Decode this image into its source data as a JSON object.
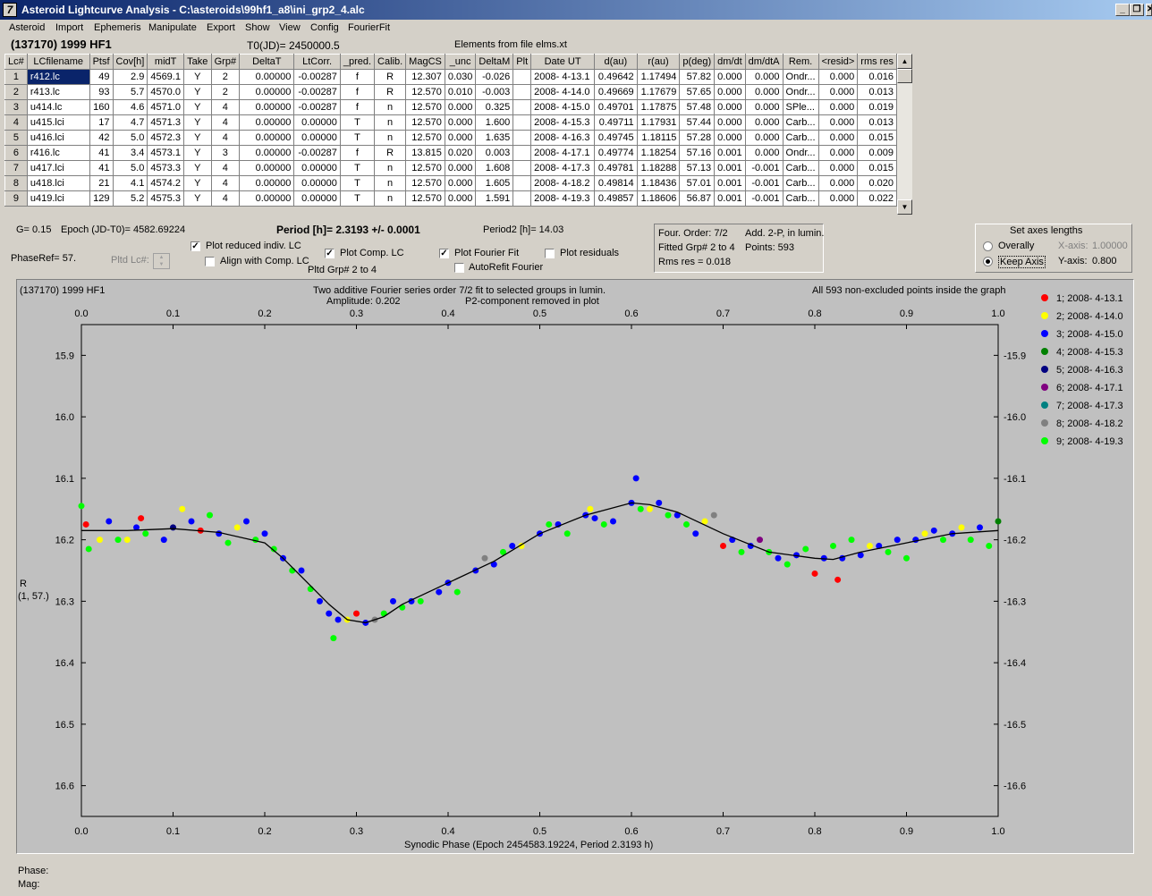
{
  "window": {
    "title": "Asteroid Lightcurve Analysis - C:\\asteroids\\99hf1_a8\\ini_grp2_4.alc",
    "app_icon": "7",
    "buttons": {
      "minimize": "_",
      "restore": "❐",
      "close": "✕"
    }
  },
  "menu": [
    "Asteroid",
    "Import",
    "Ephemeris",
    "Manipulate",
    "Export",
    "Show",
    "View",
    "Config",
    "FourierFit"
  ],
  "header": {
    "asteroid": "(137170) 1999 HF1",
    "t0": "T0(JD)= 2450000.5",
    "elements": "Elements from file elms.xt"
  },
  "table": {
    "columns": [
      "Lc#",
      "LCfilename",
      "Ptsf",
      "Cov[h]",
      "midT",
      "Take",
      "Grp#",
      "DeltaT",
      "LtCorr.",
      "_pred.",
      "Calib.",
      "MagCS",
      "_unc",
      "DeltaM",
      "Plt",
      "Date UT",
      "d(au)",
      "r(au)",
      "p(deg)",
      "dm/dt",
      "dm/dtA",
      "Rem.",
      "<resid>",
      "rms res"
    ],
    "rows": [
      [
        "1",
        "r412.lc",
        "49",
        "2.9",
        "4569.1",
        "Y",
        "2",
        "0.00000",
        "-0.00287",
        "f",
        "R",
        "12.307",
        "0.030",
        "-0.026",
        "",
        "2008- 4-13.1",
        "0.49642",
        "1.17494",
        "57.82",
        "0.000",
        "0.000",
        "Ondr...",
        "0.000",
        "0.016"
      ],
      [
        "2",
        "r413.lc",
        "93",
        "5.7",
        "4570.0",
        "Y",
        "2",
        "0.00000",
        "-0.00287",
        "f",
        "R",
        "12.570",
        "0.010",
        "-0.003",
        "",
        "2008- 4-14.0",
        "0.49669",
        "1.17679",
        "57.65",
        "0.000",
        "0.000",
        "Ondr...",
        "0.000",
        "0.013"
      ],
      [
        "3",
        "u414.lc",
        "160",
        "4.6",
        "4571.0",
        "Y",
        "4",
        "0.00000",
        "-0.00287",
        "f",
        "n",
        "12.570",
        "0.000",
        "0.325",
        "",
        "2008- 4-15.0",
        "0.49701",
        "1.17875",
        "57.48",
        "0.000",
        "0.000",
        "SPle...",
        "0.000",
        "0.019"
      ],
      [
        "4",
        "u415.lci",
        "17",
        "4.7",
        "4571.3",
        "Y",
        "4",
        "0.00000",
        "0.00000",
        "T",
        "n",
        "12.570",
        "0.000",
        "1.600",
        "",
        "2008- 4-15.3",
        "0.49711",
        "1.17931",
        "57.44",
        "0.000",
        "0.000",
        "Carb...",
        "0.000",
        "0.013"
      ],
      [
        "5",
        "u416.lci",
        "42",
        "5.0",
        "4572.3",
        "Y",
        "4",
        "0.00000",
        "0.00000",
        "T",
        "n",
        "12.570",
        "0.000",
        "1.635",
        "",
        "2008- 4-16.3",
        "0.49745",
        "1.18115",
        "57.28",
        "0.000",
        "0.000",
        "Carb...",
        "0.000",
        "0.015"
      ],
      [
        "6",
        "r416.lc",
        "41",
        "3.4",
        "4573.1",
        "Y",
        "3",
        "0.00000",
        "-0.00287",
        "f",
        "R",
        "13.815",
        "0.020",
        "0.003",
        "",
        "2008- 4-17.1",
        "0.49774",
        "1.18254",
        "57.16",
        "0.001",
        "0.000",
        "Ondr...",
        "0.000",
        "0.009"
      ],
      [
        "7",
        "u417.lci",
        "41",
        "5.0",
        "4573.3",
        "Y",
        "4",
        "0.00000",
        "0.00000",
        "T",
        "n",
        "12.570",
        "0.000",
        "1.608",
        "",
        "2008- 4-17.3",
        "0.49781",
        "1.18288",
        "57.13",
        "0.001",
        "-0.001",
        "Carb...",
        "0.000",
        "0.015"
      ],
      [
        "8",
        "u418.lci",
        "21",
        "4.1",
        "4574.2",
        "Y",
        "4",
        "0.00000",
        "0.00000",
        "T",
        "n",
        "12.570",
        "0.000",
        "1.605",
        "",
        "2008- 4-18.2",
        "0.49814",
        "1.18436",
        "57.01",
        "0.001",
        "-0.001",
        "Carb...",
        "0.000",
        "0.020"
      ],
      [
        "9",
        "u419.lci",
        "129",
        "5.2",
        "4575.3",
        "Y",
        "4",
        "0.00000",
        "0.00000",
        "T",
        "n",
        "12.570",
        "0.000",
        "1.591",
        "",
        "2008- 4-19.3",
        "0.49857",
        "1.18606",
        "56.87",
        "0.001",
        "-0.001",
        "Carb...",
        "0.000",
        "0.022"
      ]
    ]
  },
  "params": {
    "g": "G= 0.15",
    "epoch": "Epoch (JD-T0)= 4582.69224",
    "period": "Period [h]= 2.3193 +/- 0.0001",
    "period2": "Period2 [h]= 14.03",
    "phaseref": "PhaseRef= 57.",
    "pltd_lc": "Pltd Lc#:",
    "plot_reduced": "Plot reduced indiv. LC",
    "align_comp": "Align with Comp. LC",
    "plot_comp": "Plot Comp. LC",
    "pltd_grp": "Pltd Grp#  2   to   4",
    "plot_fourier": "Plot Fourier Fit",
    "autorefit": "AutoRefit Fourier",
    "plot_residuals": "Plot residuals"
  },
  "fourier_box": {
    "order": "Four. Order:  7/2",
    "add": "Add. 2-P, in lumin.",
    "fitted": "Fitted Grp# 2 to 4",
    "points": "Points: 593",
    "rms": "Rms res      = 0.018"
  },
  "axes_box": {
    "title": "Set axes lengths",
    "overally": "Overally",
    "keep_axis": "Keep Axis",
    "x_axis_label": "X-axis:",
    "x_axis_value": "1.00000",
    "y_axis_label": "Y-axis:",
    "y_axis_value": "0.800"
  },
  "status": {
    "phase": "Phase:",
    "mag": "Mag:"
  },
  "chart_data": {
    "type": "scatter",
    "title_left": "(137170) 1999 HF1",
    "title_center_1": "Two additive Fourier series order 7/2 fit to selected groups in lumin.",
    "title_center_2": "Amplitude: 0.202",
    "title_center_3": "P2-component removed in plot",
    "title_right": "All 593 non-excluded points inside the graph",
    "xlabel": "Synodic Phase (Epoch 2454583.19224, Period 2.3193 h)",
    "ylabel": "R",
    "ylabel2": "(1, 57.)",
    "xlim": [
      0.0,
      1.0
    ],
    "ylim": [
      15.85,
      16.65
    ],
    "y_inverted": true,
    "x_ticks": [
      "0.0",
      "0.1",
      "0.2",
      "0.3",
      "0.4",
      "0.5",
      "0.6",
      "0.7",
      "0.8",
      "0.9",
      "1.0"
    ],
    "y_ticks": [
      "15.9",
      "16.0",
      "16.1",
      "16.2",
      "16.3",
      "16.4",
      "16.5",
      "16.6"
    ],
    "legend": [
      {
        "label": "1; 2008- 4-13.1",
        "color": "#ff0000"
      },
      {
        "label": "2; 2008- 4-14.0",
        "color": "#ffff00"
      },
      {
        "label": "3; 2008- 4-15.0",
        "color": "#0000ff"
      },
      {
        "label": "4; 2008- 4-15.3",
        "color": "#008000"
      },
      {
        "label": "5; 2008- 4-16.3",
        "color": "#000080"
      },
      {
        "label": "6; 2008- 4-17.1",
        "color": "#800080"
      },
      {
        "label": "7; 2008- 4-17.3",
        "color": "#008080"
      },
      {
        "label": "8; 2008- 4-18.2",
        "color": "#808080"
      },
      {
        "label": "9; 2008- 4-19.3",
        "color": "#00ff00"
      }
    ],
    "fit_curve": {
      "x": [
        0.0,
        0.05,
        0.1,
        0.15,
        0.2,
        0.22,
        0.25,
        0.27,
        0.29,
        0.31,
        0.33,
        0.35,
        0.4,
        0.45,
        0.5,
        0.55,
        0.6,
        0.62,
        0.65,
        0.7,
        0.75,
        0.8,
        0.82,
        0.85,
        0.9,
        0.95,
        1.0
      ],
      "y": [
        16.185,
        16.185,
        16.182,
        16.188,
        16.205,
        16.23,
        16.275,
        16.305,
        16.33,
        16.335,
        16.325,
        16.305,
        16.27,
        16.235,
        16.19,
        16.16,
        16.14,
        16.143,
        16.155,
        16.19,
        16.22,
        16.23,
        16.232,
        16.22,
        16.205,
        16.19,
        16.185
      ]
    },
    "points": [
      {
        "series": 1,
        "x": 0.005,
        "y": 16.175
      },
      {
        "series": 2,
        "x": 0.02,
        "y": 16.2
      },
      {
        "series": 9,
        "x": 0.008,
        "y": 16.215
      },
      {
        "series": 9,
        "x": 0.0,
        "y": 16.145
      },
      {
        "series": 3,
        "x": 0.03,
        "y": 16.17
      },
      {
        "series": 9,
        "x": 0.04,
        "y": 16.2
      },
      {
        "series": 2,
        "x": 0.05,
        "y": 16.2
      },
      {
        "series": 3,
        "x": 0.06,
        "y": 16.18
      },
      {
        "series": 1,
        "x": 0.065,
        "y": 16.165
      },
      {
        "series": 9,
        "x": 0.07,
        "y": 16.19
      },
      {
        "series": 3,
        "x": 0.09,
        "y": 16.2
      },
      {
        "series": 5,
        "x": 0.1,
        "y": 16.18
      },
      {
        "series": 2,
        "x": 0.11,
        "y": 16.15
      },
      {
        "series": 3,
        "x": 0.12,
        "y": 16.17
      },
      {
        "series": 1,
        "x": 0.13,
        "y": 16.185
      },
      {
        "series": 9,
        "x": 0.14,
        "y": 16.16
      },
      {
        "series": 3,
        "x": 0.15,
        "y": 16.19
      },
      {
        "series": 9,
        "x": 0.16,
        "y": 16.205
      },
      {
        "series": 2,
        "x": 0.17,
        "y": 16.18
      },
      {
        "series": 3,
        "x": 0.18,
        "y": 16.17
      },
      {
        "series": 9,
        "x": 0.19,
        "y": 16.2
      },
      {
        "series": 3,
        "x": 0.2,
        "y": 16.19
      },
      {
        "series": 9,
        "x": 0.21,
        "y": 16.215
      },
      {
        "series": 3,
        "x": 0.22,
        "y": 16.23
      },
      {
        "series": 9,
        "x": 0.23,
        "y": 16.25
      },
      {
        "series": 3,
        "x": 0.24,
        "y": 16.25
      },
      {
        "series": 9,
        "x": 0.25,
        "y": 16.28
      },
      {
        "series": 3,
        "x": 0.26,
        "y": 16.3
      },
      {
        "series": 3,
        "x": 0.27,
        "y": 16.32
      },
      {
        "series": 9,
        "x": 0.275,
        "y": 16.36
      },
      {
        "series": 3,
        "x": 0.28,
        "y": 16.33
      },
      {
        "series": 2,
        "x": 0.29,
        "y": 16.33
      },
      {
        "series": 1,
        "x": 0.3,
        "y": 16.32
      },
      {
        "series": 3,
        "x": 0.31,
        "y": 16.335
      },
      {
        "series": 8,
        "x": 0.32,
        "y": 16.33
      },
      {
        "series": 9,
        "x": 0.33,
        "y": 16.32
      },
      {
        "series": 3,
        "x": 0.34,
        "y": 16.3
      },
      {
        "series": 9,
        "x": 0.35,
        "y": 16.31
      },
      {
        "series": 3,
        "x": 0.36,
        "y": 16.3
      },
      {
        "series": 9,
        "x": 0.37,
        "y": 16.3
      },
      {
        "series": 3,
        "x": 0.39,
        "y": 16.285
      },
      {
        "series": 3,
        "x": 0.4,
        "y": 16.27
      },
      {
        "series": 9,
        "x": 0.41,
        "y": 16.285
      },
      {
        "series": 3,
        "x": 0.43,
        "y": 16.25
      },
      {
        "series": 8,
        "x": 0.44,
        "y": 16.23
      },
      {
        "series": 3,
        "x": 0.45,
        "y": 16.24
      },
      {
        "series": 9,
        "x": 0.46,
        "y": 16.22
      },
      {
        "series": 3,
        "x": 0.47,
        "y": 16.21
      },
      {
        "series": 2,
        "x": 0.48,
        "y": 16.21
      },
      {
        "series": 3,
        "x": 0.5,
        "y": 16.19
      },
      {
        "series": 9,
        "x": 0.51,
        "y": 16.175
      },
      {
        "series": 3,
        "x": 0.52,
        "y": 16.175
      },
      {
        "series": 9,
        "x": 0.53,
        "y": 16.19
      },
      {
        "series": 3,
        "x": 0.55,
        "y": 16.16
      },
      {
        "series": 2,
        "x": 0.555,
        "y": 16.15
      },
      {
        "series": 3,
        "x": 0.56,
        "y": 16.165
      },
      {
        "series": 9,
        "x": 0.57,
        "y": 16.175
      },
      {
        "series": 3,
        "x": 0.58,
        "y": 16.17
      },
      {
        "series": 3,
        "x": 0.6,
        "y": 16.14
      },
      {
        "series": 3,
        "x": 0.605,
        "y": 16.1
      },
      {
        "series": 9,
        "x": 0.61,
        "y": 16.15
      },
      {
        "series": 2,
        "x": 0.62,
        "y": 16.15
      },
      {
        "series": 3,
        "x": 0.63,
        "y": 16.14
      },
      {
        "series": 9,
        "x": 0.64,
        "y": 16.16
      },
      {
        "series": 3,
        "x": 0.65,
        "y": 16.16
      },
      {
        "series": 9,
        "x": 0.66,
        "y": 16.175
      },
      {
        "series": 3,
        "x": 0.67,
        "y": 16.19
      },
      {
        "series": 2,
        "x": 0.68,
        "y": 16.17
      },
      {
        "series": 8,
        "x": 0.69,
        "y": 16.16
      },
      {
        "series": 1,
        "x": 0.7,
        "y": 16.21
      },
      {
        "series": 3,
        "x": 0.71,
        "y": 16.2
      },
      {
        "series": 9,
        "x": 0.72,
        "y": 16.22
      },
      {
        "series": 3,
        "x": 0.73,
        "y": 16.21
      },
      {
        "series": 6,
        "x": 0.74,
        "y": 16.2
      },
      {
        "series": 9,
        "x": 0.75,
        "y": 16.22
      },
      {
        "series": 3,
        "x": 0.76,
        "y": 16.23
      },
      {
        "series": 9,
        "x": 0.77,
        "y": 16.24
      },
      {
        "series": 3,
        "x": 0.78,
        "y": 16.225
      },
      {
        "series": 9,
        "x": 0.79,
        "y": 16.215
      },
      {
        "series": 1,
        "x": 0.8,
        "y": 16.255
      },
      {
        "series": 3,
        "x": 0.81,
        "y": 16.23
      },
      {
        "series": 9,
        "x": 0.82,
        "y": 16.21
      },
      {
        "series": 1,
        "x": 0.825,
        "y": 16.265
      },
      {
        "series": 3,
        "x": 0.83,
        "y": 16.23
      },
      {
        "series": 9,
        "x": 0.84,
        "y": 16.2
      },
      {
        "series": 3,
        "x": 0.85,
        "y": 16.225
      },
      {
        "series": 2,
        "x": 0.86,
        "y": 16.21
      },
      {
        "series": 3,
        "x": 0.87,
        "y": 16.21
      },
      {
        "series": 9,
        "x": 0.88,
        "y": 16.22
      },
      {
        "series": 3,
        "x": 0.89,
        "y": 16.2
      },
      {
        "series": 9,
        "x": 0.9,
        "y": 16.23
      },
      {
        "series": 3,
        "x": 0.91,
        "y": 16.2
      },
      {
        "series": 2,
        "x": 0.92,
        "y": 16.19
      },
      {
        "series": 3,
        "x": 0.93,
        "y": 16.185
      },
      {
        "series": 9,
        "x": 0.94,
        "y": 16.2
      },
      {
        "series": 3,
        "x": 0.95,
        "y": 16.19
      },
      {
        "series": 2,
        "x": 0.96,
        "y": 16.18
      },
      {
        "series": 9,
        "x": 0.97,
        "y": 16.2
      },
      {
        "series": 3,
        "x": 0.98,
        "y": 16.18
      },
      {
        "series": 9,
        "x": 0.99,
        "y": 16.21
      },
      {
        "series": 4,
        "x": 1.0,
        "y": 16.17
      }
    ]
  }
}
